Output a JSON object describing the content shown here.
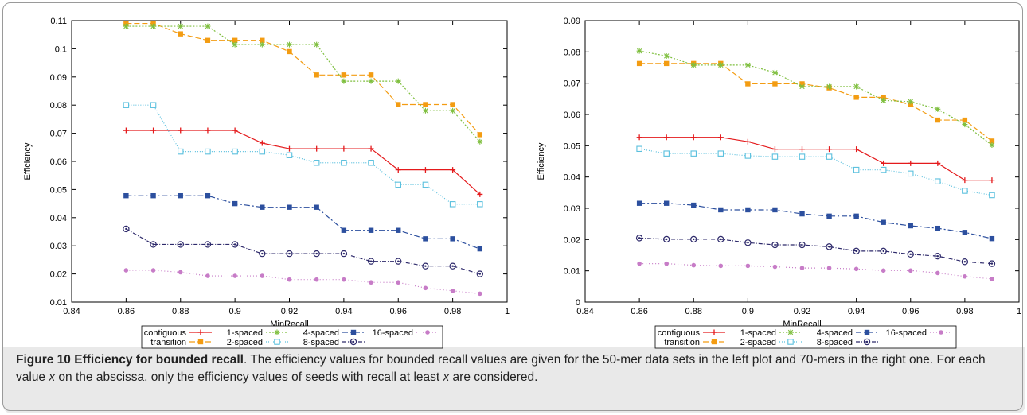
{
  "caption": {
    "label": "Figure 10",
    "title": "Efficiency for bounded recall",
    "text_1": ". The efficiency values for bounded recall values are given for the 50-mer data sets in the left plot and 70-mers in the right one. For each value ",
    "var": "x",
    "text_2": " on the abscissa, only the efficiency values of seeds with recall at least ",
    "var2": "x",
    "text_3": " are considered."
  },
  "colors": {
    "contiguous": "#e41a1c",
    "transition": "#f39c12",
    "1-spaced": "#7fbf3f",
    "2-spaced": "#5bc0de",
    "4-spaced": "#2c4f9e",
    "8-spaced": "#2e2a6b",
    "16-spaced": "#c77cc7"
  },
  "chart_data": [
    {
      "type": "line",
      "xlabel": "MinRecall",
      "ylabel": "Efficiency",
      "xlim": [
        0.84,
        1
      ],
      "ylim": [
        0.01,
        0.11
      ],
      "xticks": [
        "0.84",
        "0.86",
        "0.88",
        "0.9",
        "0.92",
        "0.94",
        "0.96",
        "0.98",
        "1"
      ],
      "yticks": [
        "0.01",
        "0.02",
        "0.03",
        "0.04",
        "0.05",
        "0.06",
        "0.07",
        "0.08",
        "0.09",
        "0.1",
        "0.11"
      ],
      "x": [
        0.86,
        0.87,
        0.88,
        0.89,
        0.9,
        0.91,
        0.92,
        0.93,
        0.94,
        0.95,
        0.96,
        0.97,
        0.98,
        0.99
      ],
      "series": [
        {
          "name": "contiguous",
          "values": [
            0.071,
            0.071,
            0.071,
            0.071,
            0.071,
            0.0665,
            0.0645,
            0.0645,
            0.0645,
            0.0645,
            0.057,
            0.057,
            0.057,
            0.0483
          ]
        },
        {
          "name": "transition",
          "values": [
            0.109,
            0.109,
            0.1053,
            0.103,
            0.103,
            0.103,
            0.099,
            0.0907,
            0.0907,
            0.0907,
            0.0802,
            0.0802,
            0.0802,
            0.0695
          ]
        },
        {
          "name": "1-spaced",
          "values": [
            0.108,
            0.108,
            0.108,
            0.108,
            0.1015,
            0.1015,
            0.1015,
            0.1015,
            0.0885,
            0.0885,
            0.0885,
            0.078,
            0.078,
            0.067
          ]
        },
        {
          "name": "2-spaced",
          "values": [
            0.08,
            0.08,
            0.0635,
            0.0635,
            0.0635,
            0.0635,
            0.0622,
            0.0595,
            0.0595,
            0.0595,
            0.0517,
            0.0517,
            0.0448,
            0.0448
          ]
        },
        {
          "name": "4-spaced",
          "values": [
            0.0478,
            0.0478,
            0.0478,
            0.0478,
            0.045,
            0.0437,
            0.0437,
            0.0437,
            0.0355,
            0.0355,
            0.0355,
            0.0325,
            0.0325,
            0.0289
          ]
        },
        {
          "name": "8-spaced",
          "values": [
            0.036,
            0.0305,
            0.0305,
            0.0305,
            0.0305,
            0.0272,
            0.0272,
            0.0272,
            0.0272,
            0.0245,
            0.0245,
            0.0228,
            0.0228,
            0.02
          ]
        },
        {
          "name": "16-spaced",
          "values": [
            0.0213,
            0.0213,
            0.0206,
            0.0193,
            0.0193,
            0.0193,
            0.018,
            0.018,
            0.018,
            0.017,
            0.017,
            0.015,
            0.014,
            0.013
          ]
        }
      ],
      "legend": [
        "contiguous",
        "1-spaced",
        "4-spaced",
        "16-spaced",
        "transition",
        "2-spaced",
        "8-spaced"
      ]
    },
    {
      "type": "line",
      "xlabel": "MinRecall",
      "ylabel": "Efficiency",
      "xlim": [
        0.84,
        1
      ],
      "ylim": [
        0,
        0.09
      ],
      "xticks": [
        "0.84",
        "0.86",
        "0.88",
        "0.9",
        "0.92",
        "0.94",
        "0.96",
        "0.98",
        "1"
      ],
      "yticks": [
        "0",
        "0.01",
        "0.02",
        "0.03",
        "0.04",
        "0.05",
        "0.06",
        "0.07",
        "0.08",
        "0.09"
      ],
      "x": [
        0.86,
        0.87,
        0.88,
        0.89,
        0.9,
        0.91,
        0.92,
        0.93,
        0.94,
        0.95,
        0.96,
        0.97,
        0.98,
        0.99
      ],
      "series": [
        {
          "name": "contiguous",
          "values": [
            0.0527,
            0.0527,
            0.0527,
            0.0527,
            0.0513,
            0.0489,
            0.0489,
            0.0489,
            0.0489,
            0.0444,
            0.0444,
            0.0444,
            0.039,
            0.039
          ]
        },
        {
          "name": "transition",
          "values": [
            0.0763,
            0.0763,
            0.0763,
            0.0763,
            0.0698,
            0.0698,
            0.0698,
            0.0685,
            0.0655,
            0.0655,
            0.0631,
            0.0582,
            0.0582,
            0.0515
          ]
        },
        {
          "name": "1-spaced",
          "values": [
            0.0803,
            0.0787,
            0.0758,
            0.0758,
            0.0758,
            0.0734,
            0.0689,
            0.0689,
            0.0689,
            0.0645,
            0.0641,
            0.0617,
            0.0568,
            0.0502
          ]
        },
        {
          "name": "2-spaced",
          "values": [
            0.049,
            0.0475,
            0.0475,
            0.0475,
            0.0468,
            0.0465,
            0.0465,
            0.0465,
            0.0423,
            0.0423,
            0.0411,
            0.0386,
            0.0356,
            0.0342
          ]
        },
        {
          "name": "4-spaced",
          "values": [
            0.0316,
            0.0316,
            0.031,
            0.0295,
            0.0295,
            0.0295,
            0.0282,
            0.0275,
            0.0275,
            0.0255,
            0.0244,
            0.0236,
            0.0223,
            0.0203
          ]
        },
        {
          "name": "8-spaced",
          "values": [
            0.0205,
            0.0201,
            0.0201,
            0.0201,
            0.019,
            0.0183,
            0.0183,
            0.0177,
            0.0163,
            0.0163,
            0.0153,
            0.0147,
            0.0129,
            0.0123
          ]
        },
        {
          "name": "16-spaced",
          "values": [
            0.0123,
            0.0123,
            0.0118,
            0.0116,
            0.0116,
            0.0113,
            0.0109,
            0.0109,
            0.0106,
            0.0101,
            0.0101,
            0.0093,
            0.0082,
            0.0074
          ]
        }
      ],
      "legend": [
        "contiguous",
        "1-spaced",
        "4-spaced",
        "16-spaced",
        "transition",
        "2-spaced",
        "8-spaced"
      ]
    }
  ]
}
